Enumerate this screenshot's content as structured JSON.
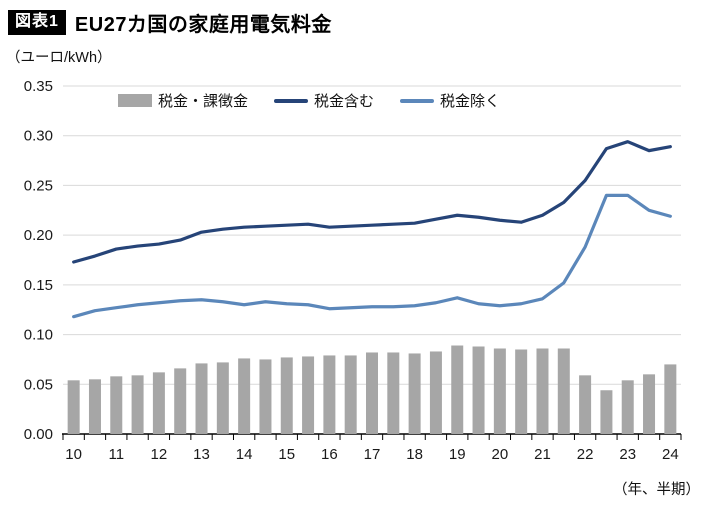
{
  "header": {
    "badge": "図表1",
    "title": "EU27カ国の家庭用電気料金"
  },
  "chart_data": {
    "type": "bar+line",
    "title": "EU27カ国の家庭用電気料金",
    "unit_label": "（ユーロ/kWh）",
    "x_axis_note": "（年、半期）",
    "x_year_labels": [
      "10",
      "11",
      "12",
      "13",
      "14",
      "15",
      "16",
      "17",
      "18",
      "19",
      "20",
      "21",
      "22",
      "23",
      "24"
    ],
    "x_periods_per_year": 2,
    "ylim": [
      0,
      0.35
    ],
    "ytick_step": 0.05,
    "grid": true,
    "legend_position": "top",
    "colors": {
      "grid": "#d9d9d9",
      "axis": "#000000",
      "text": "#1a1a1a"
    },
    "series": [
      {
        "name": "税金・課徴金",
        "type": "bar",
        "color": "#a6a6a6",
        "values": [
          0.054,
          0.055,
          0.058,
          0.059,
          0.062,
          0.066,
          0.071,
          0.072,
          0.076,
          0.075,
          0.077,
          0.078,
          0.079,
          0.079,
          0.082,
          0.082,
          0.081,
          0.083,
          0.089,
          0.088,
          0.086,
          0.085,
          0.086,
          0.086,
          0.059,
          0.044,
          0.054,
          0.06,
          0.07
        ]
      },
      {
        "name": "税金含む",
        "type": "line",
        "color": "#264478",
        "values": [
          0.173,
          0.179,
          0.186,
          0.189,
          0.191,
          0.195,
          0.203,
          0.206,
          0.208,
          0.209,
          0.21,
          0.211,
          0.208,
          0.209,
          0.21,
          0.211,
          0.212,
          0.216,
          0.22,
          0.218,
          0.215,
          0.213,
          0.22,
          0.233,
          0.255,
          0.287,
          0.294,
          0.285,
          0.289
        ]
      },
      {
        "name": "税金除く",
        "type": "line",
        "color": "#5b87ba",
        "values": [
          0.118,
          0.124,
          0.127,
          0.13,
          0.132,
          0.134,
          0.135,
          0.133,
          0.13,
          0.133,
          0.131,
          0.13,
          0.126,
          0.127,
          0.128,
          0.128,
          0.129,
          0.132,
          0.137,
          0.131,
          0.129,
          0.131,
          0.136,
          0.152,
          0.188,
          0.24,
          0.24,
          0.225,
          0.219
        ]
      }
    ]
  }
}
